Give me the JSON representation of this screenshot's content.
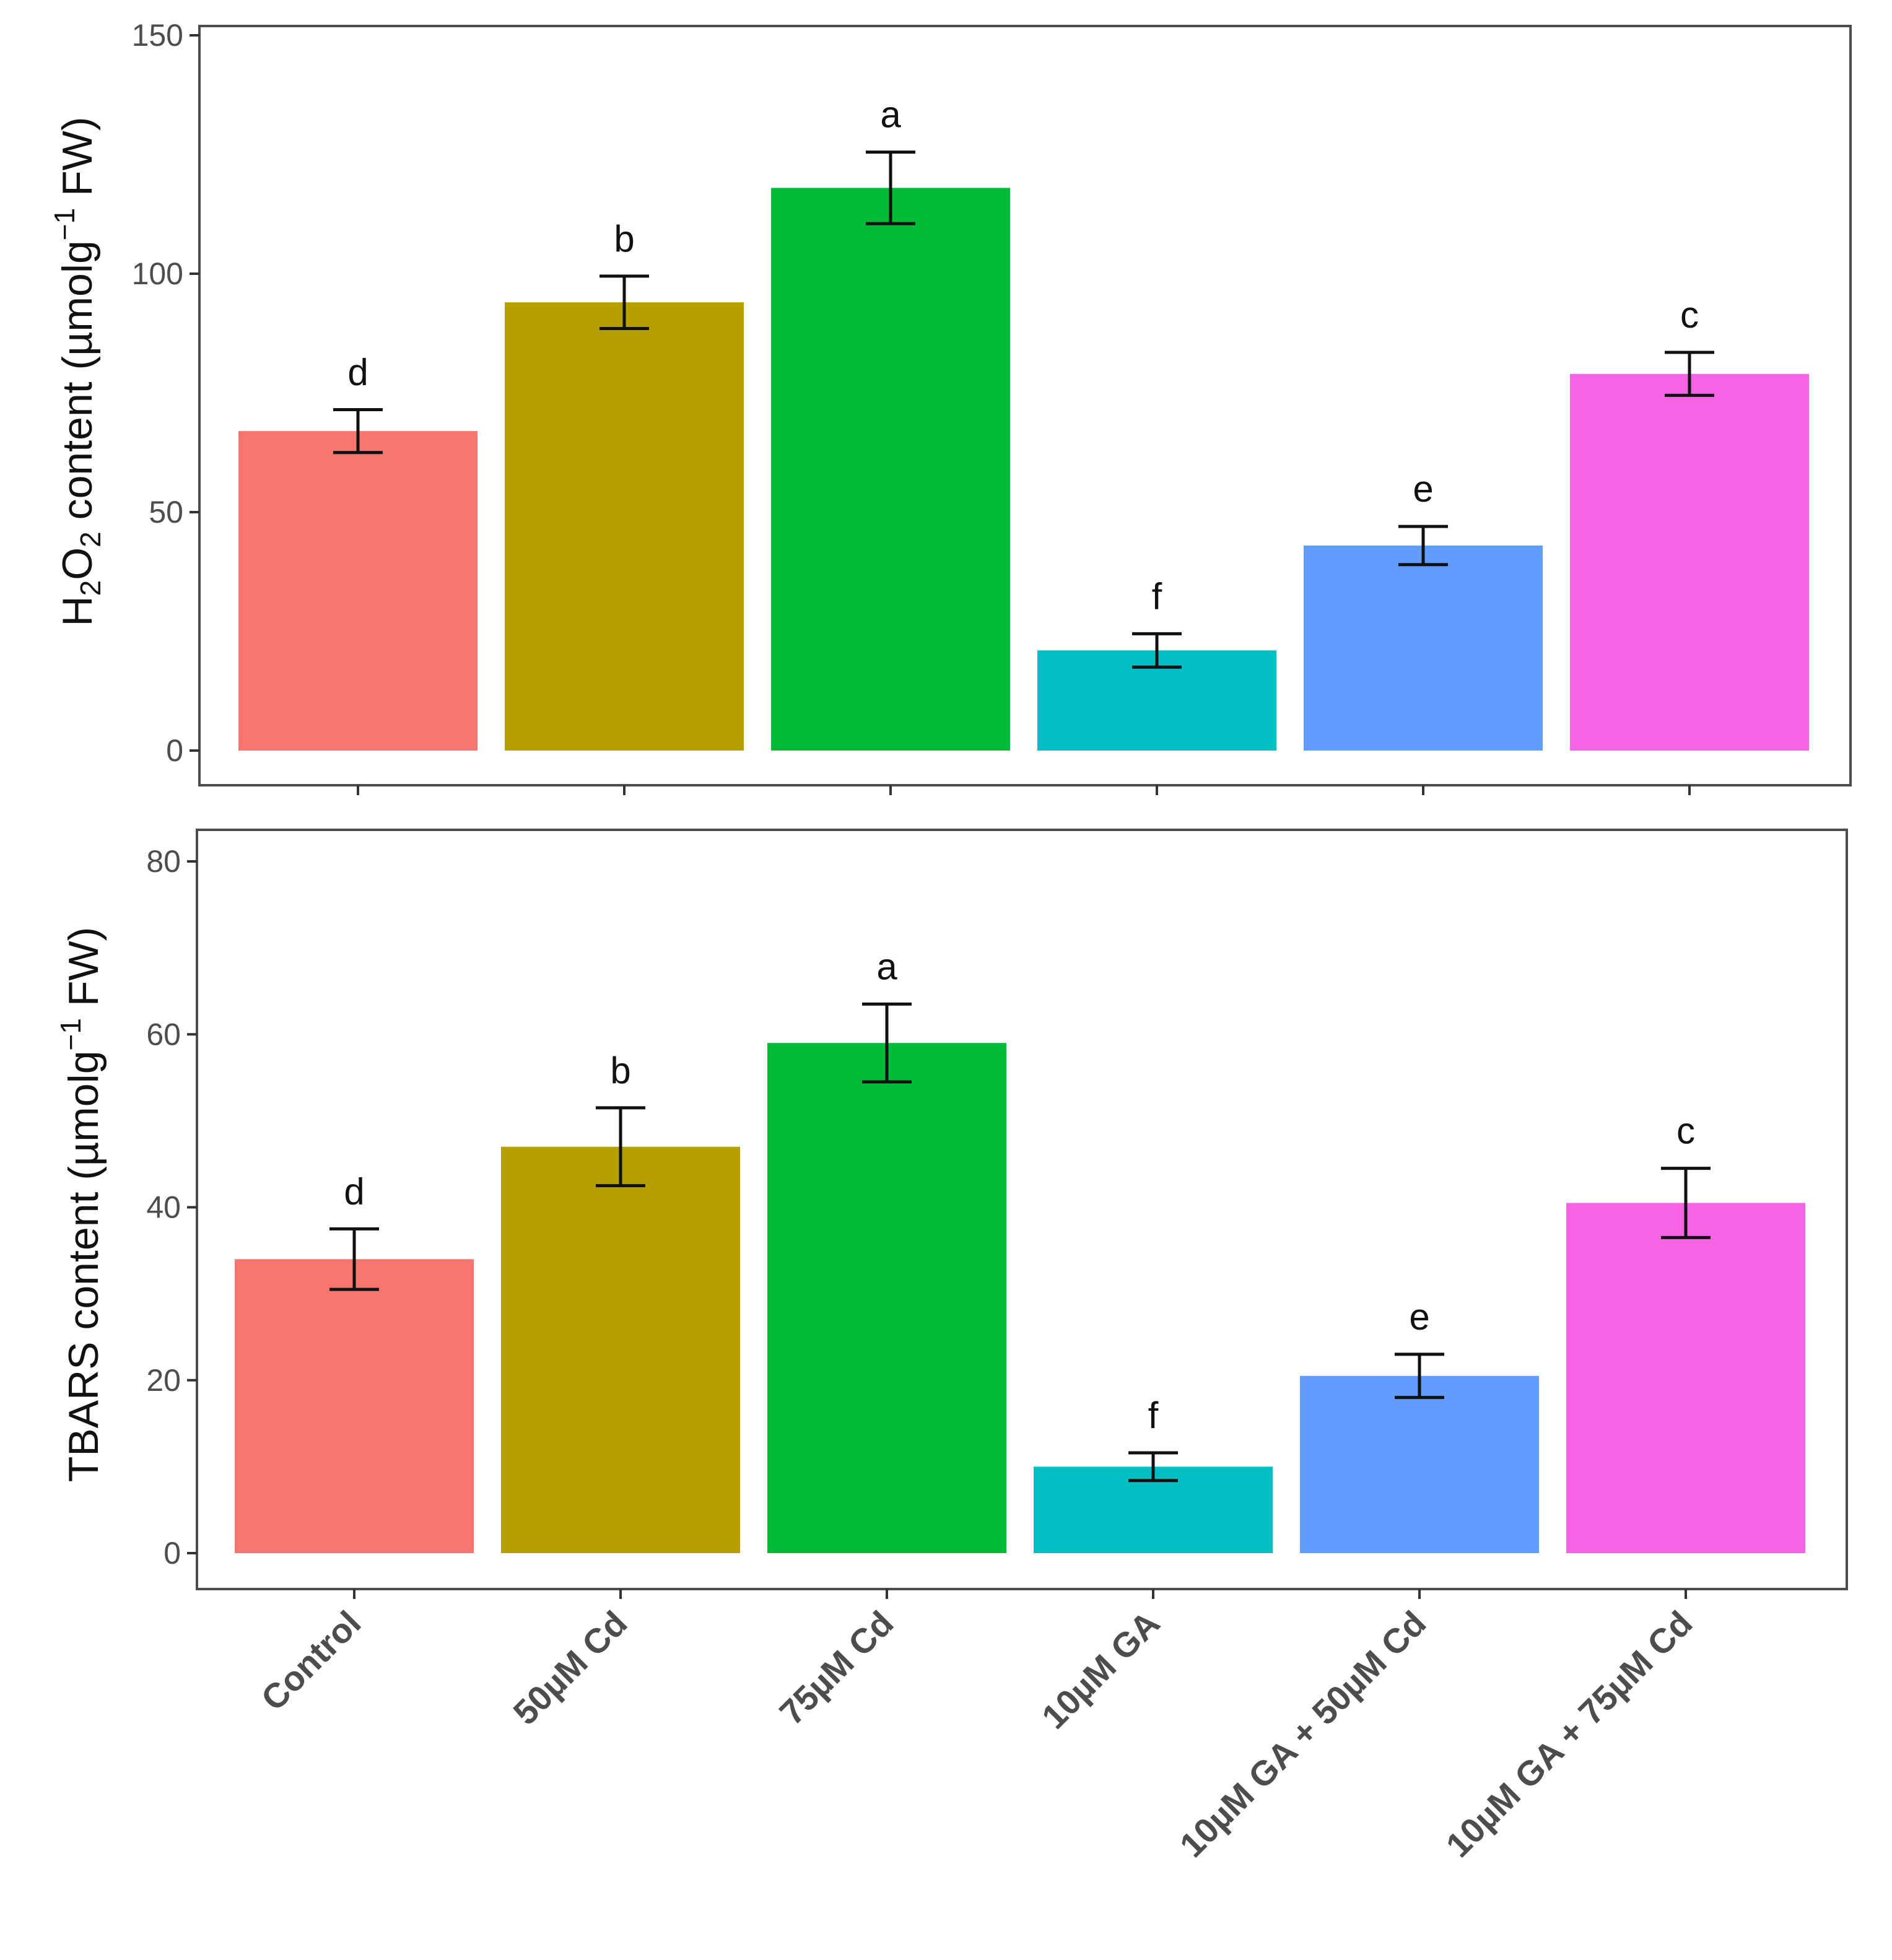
{
  "chart_data": [
    {
      "type": "bar",
      "categories": [
        "Control",
        "50µM Cd",
        "75µM Cd",
        "10µM GA",
        "10µM GA +  50µM Cd",
        "10µM GA +  75µM Cd"
      ],
      "values": [
        67,
        94,
        118,
        21,
        43,
        79
      ],
      "errors": [
        4.5,
        5.5,
        7.5,
        3.5,
        4,
        4.5
      ],
      "letters": [
        "d",
        "b",
        "a",
        "f",
        "e",
        "c"
      ],
      "colors": [
        "#F8766D",
        "#B79F00",
        "#00BA38",
        "#00BFC4",
        "#619CFF",
        "#F564E3"
      ],
      "ylabel": {
        "pre": "H",
        "sub1": "2",
        "mid": "O",
        "sub2": "2",
        "post": " content  (µmolg",
        "sup": "−1",
        "end": " FW)"
      },
      "ylim": [
        0,
        150
      ],
      "yticks": [
        0,
        50,
        100,
        150
      ],
      "yticklabels": [
        "0",
        "50",
        "100",
        "150"
      ]
    },
    {
      "type": "bar",
      "categories": [
        "Control",
        "50µM Cd",
        "75µM Cd",
        "10µM GA",
        "10µM GA +  50µM Cd",
        "10µM GA +  75µM Cd"
      ],
      "values": [
        34,
        47,
        59,
        10,
        20.5,
        40.5
      ],
      "errors": [
        3.5,
        4.5,
        4.5,
        1.6,
        2.5,
        4
      ],
      "letters": [
        "d",
        "b",
        "a",
        "f",
        "e",
        "c"
      ],
      "colors": [
        "#F8766D",
        "#B79F00",
        "#00BA38",
        "#00BFC4",
        "#619CFF",
        "#F564E3"
      ],
      "ylabel": {
        "pre": "TBARS content  (µmolg",
        "sup": "−1",
        "end": " FW)"
      },
      "ylim": [
        0,
        80
      ],
      "yticks": [
        0,
        20,
        40,
        60,
        80
      ],
      "yticklabels": [
        "0",
        "20",
        "40",
        "60",
        "80"
      ]
    }
  ]
}
